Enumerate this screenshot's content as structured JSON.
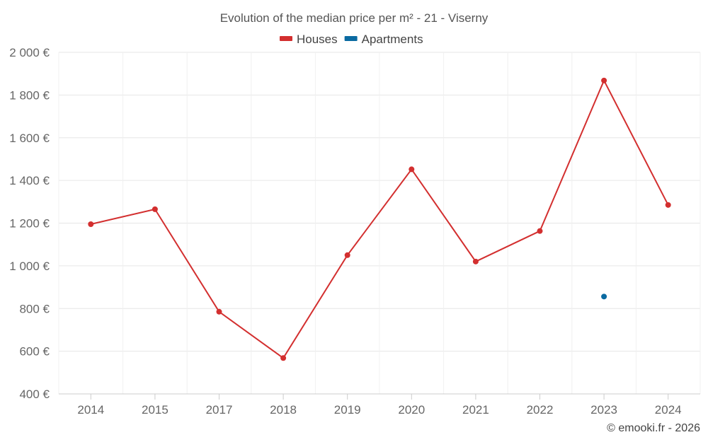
{
  "chart_data": {
    "type": "line",
    "title": "Evolution of the median price per m² - 21 - Viserny",
    "categories": [
      "2014",
      "2015",
      "2017",
      "2018",
      "2019",
      "2020",
      "2021",
      "2022",
      "2023",
      "2024"
    ],
    "series": [
      {
        "name": "Houses",
        "color": "#d32f2f",
        "values": [
          1195,
          1265,
          785,
          568,
          1050,
          1452,
          1020,
          1163,
          1868,
          1285
        ]
      },
      {
        "name": "Apartments",
        "color": "#0a6aa1",
        "values": [
          null,
          null,
          null,
          null,
          null,
          null,
          null,
          null,
          856,
          null
        ]
      }
    ],
    "ylim": [
      400,
      2000
    ],
    "yticks": [
      400,
      600,
      800,
      1000,
      1200,
      1400,
      1600,
      1800,
      2000
    ],
    "ytick_labels": [
      "400 €",
      "600 €",
      "800 €",
      "1 000 €",
      "1 200 €",
      "1 400 €",
      "1 600 €",
      "1 800 €",
      "2 000 €"
    ],
    "xlabel": "",
    "ylabel": "",
    "legend_position": "top-center",
    "grid": true,
    "footer": "© emooki.fr - 2026"
  }
}
